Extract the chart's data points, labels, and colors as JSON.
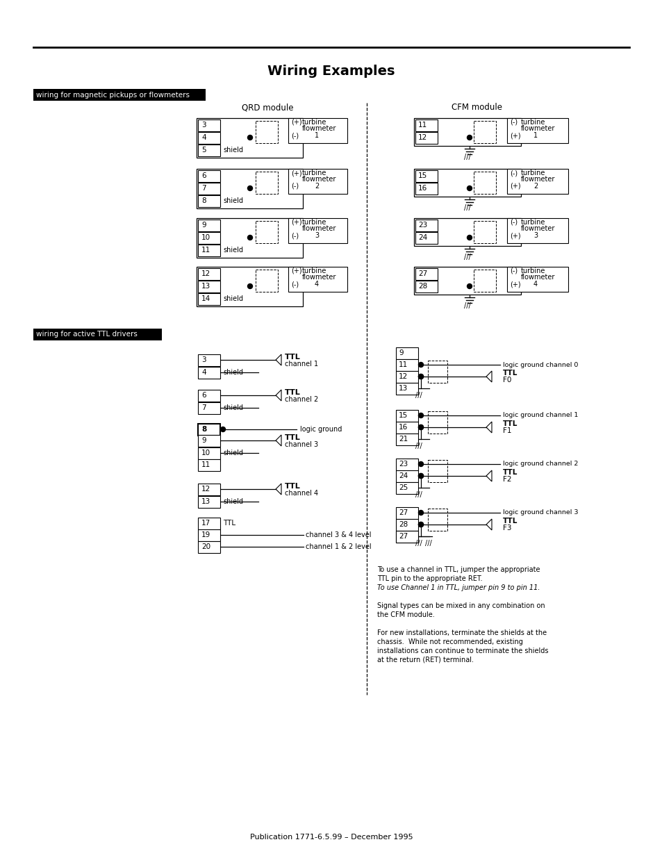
{
  "title": "Wiring Examples",
  "top_label1": "wiring for magnetic pickups or flowmeters",
  "top_label2": "wiring for active TTL drivers",
  "qrd_module": "QRD module",
  "cfm_module": "CFM module",
  "page_note": "Publication 1771-6.5.99 – December 1995",
  "bg_color": "#ffffff",
  "line_color": "#000000"
}
